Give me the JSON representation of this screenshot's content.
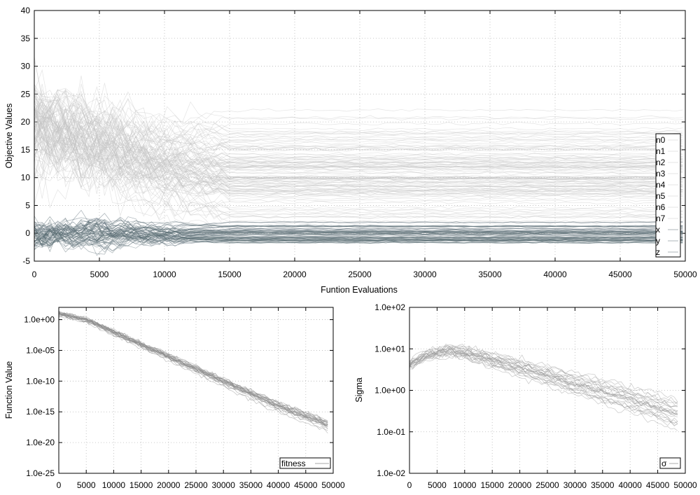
{
  "chart_data": [
    {
      "type": "line",
      "ylabel": "Objective Values",
      "xlabel": "Funtion Evaluations",
      "xlim": [
        0,
        50000
      ],
      "ylim": [
        -5,
        40
      ],
      "x_ticks": [
        "0",
        "5000",
        "10000",
        "15000",
        "20000",
        "25000",
        "30000",
        "35000",
        "40000",
        "45000",
        "50000"
      ],
      "y_ticks": [
        "-5",
        "0",
        "5",
        "10",
        "15",
        "20",
        "25",
        "30",
        "35",
        "40"
      ],
      "grid": true,
      "legend_position": "right",
      "legend": [
        "n0",
        "n1",
        "n2",
        "n3",
        "n4",
        "n5",
        "n6",
        "n7",
        "x",
        "y",
        "z"
      ],
      "series": [
        {
          "name": "n0",
          "x": [
            0,
            5000,
            10000,
            15000,
            20000,
            30000,
            50000
          ],
          "values": [
            20,
            17,
            13,
            11,
            11,
            11,
            11
          ]
        },
        {
          "name": "n1",
          "x": [
            0,
            5000,
            10000,
            15000,
            20000,
            30000,
            50000
          ],
          "values": [
            18,
            15,
            11,
            9,
            9,
            9,
            9
          ]
        },
        {
          "name": "n2",
          "x": [
            0,
            5000,
            10000,
            15000,
            20000,
            30000,
            50000
          ],
          "values": [
            22,
            18,
            14,
            13,
            13,
            13,
            13
          ]
        },
        {
          "name": "n3",
          "x": [
            0,
            5000,
            10000,
            15000,
            20000,
            30000,
            50000
          ],
          "values": [
            16,
            13,
            10,
            8,
            8,
            8,
            8
          ]
        },
        {
          "name": "n4",
          "x": [
            0,
            5000,
            10000,
            15000,
            20000,
            30000,
            50000
          ],
          "values": [
            24,
            20,
            16,
            15,
            15,
            15,
            15
          ]
        },
        {
          "name": "n5",
          "x": [
            0,
            5000,
            10000,
            15000,
            20000,
            30000,
            50000
          ],
          "values": [
            14,
            12,
            9,
            7,
            7,
            7,
            7
          ]
        },
        {
          "name": "n6",
          "x": [
            0,
            5000,
            10000,
            15000,
            20000,
            30000,
            50000
          ],
          "values": [
            19,
            16,
            12,
            10,
            10,
            10,
            10
          ]
        },
        {
          "name": "n7",
          "x": [
            0,
            5000,
            10000,
            15000,
            20000,
            30000,
            50000
          ],
          "values": [
            21,
            17,
            13,
            12,
            12,
            12,
            12
          ]
        },
        {
          "name": "x",
          "x": [
            0,
            5000,
            10000,
            15000,
            20000,
            30000,
            50000
          ],
          "values": [
            0,
            1,
            -0.5,
            0.5,
            0.5,
            0.5,
            0.5
          ]
        },
        {
          "name": "y",
          "x": [
            0,
            5000,
            10000,
            15000,
            20000,
            30000,
            50000
          ],
          "values": [
            0.5,
            -1,
            0.5,
            0,
            0,
            0,
            0
          ]
        },
        {
          "name": "z",
          "x": [
            0,
            5000,
            10000,
            15000,
            20000,
            30000,
            50000
          ],
          "values": [
            -0.5,
            0.5,
            0,
            -0.5,
            -0.5,
            -0.5,
            -0.5
          ]
        }
      ]
    },
    {
      "type": "line",
      "ylabel": "Function Value",
      "xlabel": "",
      "xlim": [
        0,
        50000
      ],
      "ylim": [
        1e-25,
        100.0
      ],
      "yscale": "log",
      "x_ticks": [
        "0",
        "5000",
        "10000",
        "15000",
        "20000",
        "25000",
        "30000",
        "35000",
        "40000",
        "45000",
        "50000"
      ],
      "y_ticks": [
        "1.0e-25",
        "1.0e-20",
        "1.0e-15",
        "1.0e-10",
        "1.0e-05",
        "1.0e+00"
      ],
      "grid": true,
      "legend_position": "bottom-right",
      "legend": [
        "fitness"
      ],
      "series": [
        {
          "name": "fitness",
          "x": [
            0,
            5000,
            10000,
            20000,
            30000,
            40000,
            49000
          ],
          "values": [
            10,
            1,
            0.01,
            1e-06,
            1e-10,
            1e-14,
            1e-17
          ]
        }
      ]
    },
    {
      "type": "line",
      "ylabel": "Sigma",
      "xlabel": "",
      "xlim": [
        0,
        50000
      ],
      "ylim": [
        0.01,
        100
      ],
      "yscale": "log",
      "x_ticks": [
        "0",
        "5000",
        "10000",
        "15000",
        "20000",
        "25000",
        "30000",
        "35000",
        "40000",
        "45000",
        "50000"
      ],
      "y_ticks": [
        "1.0e-02",
        "1.0e-01",
        "1.0e+00",
        "1.0e+01",
        "1.0e+02"
      ],
      "grid": true,
      "legend_position": "bottom-right",
      "legend": [
        "σ"
      ],
      "series": [
        {
          "name": "σ",
          "x": [
            0,
            3000,
            7000,
            10000,
            20000,
            30000,
            40000,
            49000
          ],
          "values": [
            4,
            7,
            9,
            8,
            3.5,
            1.4,
            0.6,
            0.25
          ]
        }
      ]
    }
  ]
}
